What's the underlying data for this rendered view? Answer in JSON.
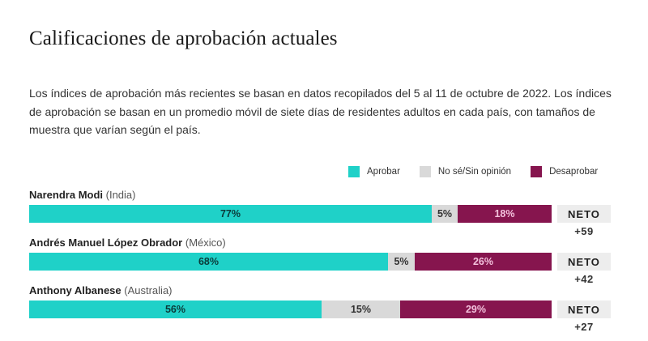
{
  "title": "Calificaciones de aprobación actuales",
  "description": "Los índices de aprobación más recientes se basan en datos recopilados del 5 al 11 de octubre de 2022. Los índices de aprobación se basan en un promedio móvil de siete días de residentes adultos en cada país, con tamaños de muestra que varían según el país.",
  "colors": {
    "approve": "#1fd1c8",
    "neutral": "#d9d9d9",
    "disapprove": "#86154e"
  },
  "legend": [
    {
      "key": "approve",
      "label": "Aprobar"
    },
    {
      "key": "neutral",
      "label": "No sé/Sin opinión"
    },
    {
      "key": "disapprove",
      "label": "Desaprobar"
    }
  ],
  "net_label": "NETO",
  "chart_data": {
    "type": "bar",
    "orientation": "horizontal-stacked",
    "title": "Calificaciones de aprobación actuales",
    "series_names": [
      "Aprobar",
      "No sé/Sin opinión",
      "Desaprobar"
    ],
    "xlim": [
      0,
      100
    ],
    "unit": "%",
    "legend_position": "top-right",
    "rows": [
      {
        "name": "Narendra Modi",
        "country": "(India)",
        "approve": 77,
        "neutral": 5,
        "disapprove": 18,
        "net": "+59"
      },
      {
        "name": "Andrés Manuel López Obrador",
        "country": "(México)",
        "approve": 68,
        "neutral": 5,
        "disapprove": 26,
        "net": "+42"
      },
      {
        "name": "Anthony Albanese",
        "country": "(Australia)",
        "approve": 56,
        "neutral": 15,
        "disapprove": 29,
        "net": "+27"
      }
    ]
  }
}
